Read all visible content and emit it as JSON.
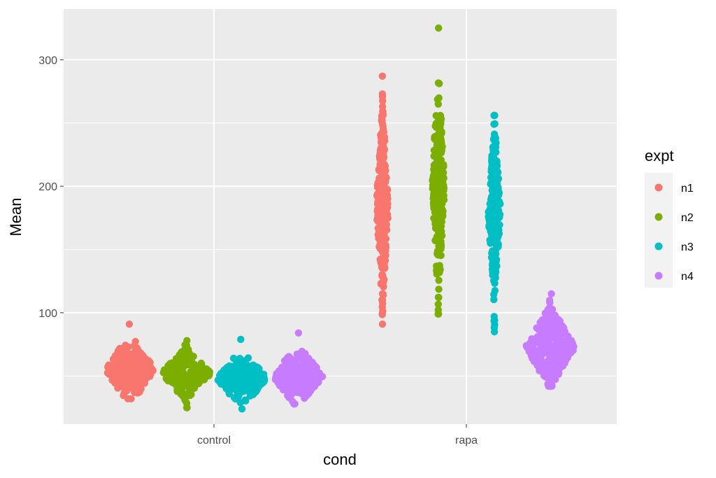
{
  "chart_data": {
    "type": "scatter",
    "subtype": "beeswarm",
    "xlabel": "cond",
    "ylabel": "Mean",
    "categories": [
      "control",
      "rapa"
    ],
    "yticks": [
      100,
      200,
      300
    ],
    "ylim": [
      12,
      340
    ],
    "grid": true,
    "panel_background": "#ebebeb",
    "legend": {
      "title": "expt",
      "position": "right",
      "entries": [
        {
          "name": "n1",
          "color": "#F8766D"
        },
        {
          "name": "n2",
          "color": "#7CAE00"
        },
        {
          "name": "n3",
          "color": "#00BFC4"
        },
        {
          "name": "n4",
          "color": "#C77CFF"
        }
      ]
    },
    "series": [
      {
        "name": "n1",
        "category": "control",
        "color": "#F8766D",
        "median": 55,
        "q1": 50,
        "q3": 62,
        "min": 32,
        "max": 91
      },
      {
        "name": "n2",
        "category": "control",
        "color": "#7CAE00",
        "median": 52,
        "q1": 47,
        "q3": 58,
        "min": 25,
        "max": 78
      },
      {
        "name": "n3",
        "category": "control",
        "color": "#00BFC4",
        "median": 48,
        "q1": 44,
        "q3": 53,
        "min": 24,
        "max": 79
      },
      {
        "name": "n4",
        "category": "control",
        "color": "#C77CFF",
        "median": 50,
        "q1": 45,
        "q3": 56,
        "min": 28,
        "max": 84
      },
      {
        "name": "n1",
        "category": "rapa",
        "color": "#F8766D",
        "median": 185,
        "q1": 160,
        "q3": 212,
        "min": 91,
        "max": 287
      },
      {
        "name": "n2",
        "category": "rapa",
        "color": "#7CAE00",
        "median": 200,
        "q1": 180,
        "q3": 222,
        "min": 99,
        "max": 325
      },
      {
        "name": "n3",
        "category": "rapa",
        "color": "#00BFC4",
        "median": 180,
        "q1": 158,
        "q3": 205,
        "min": 85,
        "max": 256
      },
      {
        "name": "n4",
        "category": "rapa",
        "color": "#C77CFF",
        "median": 73,
        "q1": 64,
        "q3": 83,
        "min": 42,
        "max": 115
      }
    ]
  }
}
